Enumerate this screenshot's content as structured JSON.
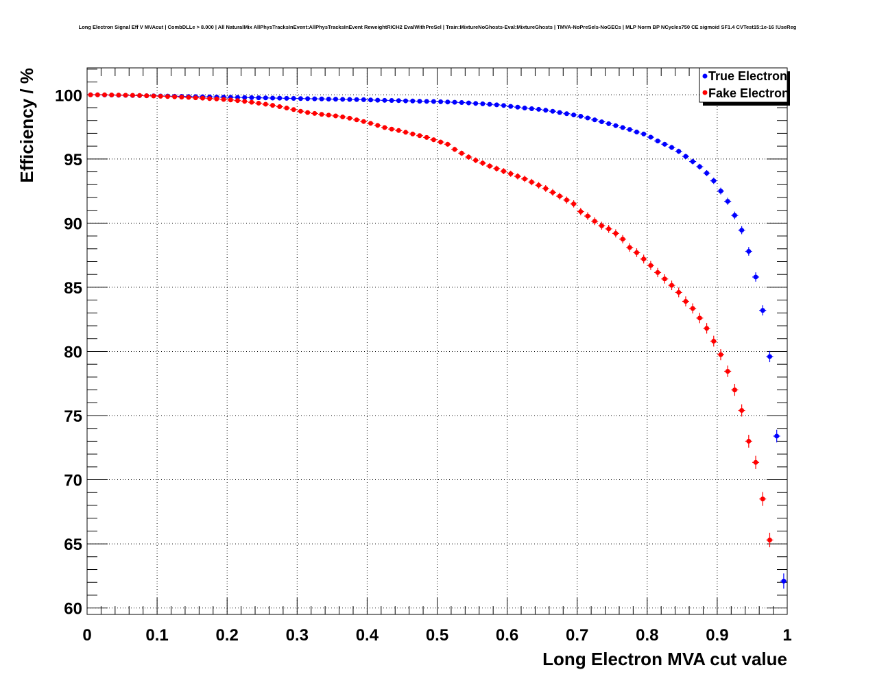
{
  "chart_data": {
    "type": "scatter",
    "title": "Long Electron Signal Eff V MVAcut | CombDLLe > 8.000 | All NaturalMix AllPhysTracksInEvent:AllPhysTracksInEvent ReweightRICH2 EvalWithPreSel | Train:MixtureNoGhosts-Eval:MixtureGhosts | TMVA-NoPreSels-NoGECs | MLP Norm BP NCycles750 CE sigmoid SF1.4 CVTest15:1e-16 !UseReg",
    "xlabel": "Long Electron MVA cut value",
    "ylabel": "Efficiency / %",
    "xlim": [
      0,
      1
    ],
    "ylim": [
      59.5,
      102.1
    ],
    "xticks": [
      "0",
      "0.1",
      "0.2",
      "0.3",
      "0.4",
      "0.5",
      "0.6",
      "0.7",
      "0.8",
      "0.9",
      "1"
    ],
    "yticks": [
      "60",
      "65",
      "70",
      "75",
      "80",
      "85",
      "90",
      "95",
      "100"
    ],
    "grid": true,
    "legend_position": "top-right",
    "x_start": 0.005,
    "x_step": 0.01,
    "series": [
      {
        "name": "True Electron",
        "color": "#0000ff",
        "values": [
          100,
          100,
          99.99,
          99.98,
          99.97,
          99.96,
          99.95,
          99.94,
          99.93,
          99.92,
          99.91,
          99.9,
          99.89,
          99.88,
          99.87,
          99.86,
          99.85,
          99.84,
          99.83,
          99.82,
          99.81,
          99.8,
          99.79,
          99.78,
          99.77,
          99.76,
          99.75,
          99.74,
          99.73,
          99.72,
          99.71,
          99.7,
          99.69,
          99.68,
          99.67,
          99.66,
          99.65,
          99.64,
          99.63,
          99.62,
          99.6,
          99.58,
          99.57,
          99.56,
          99.55,
          99.53,
          99.52,
          99.5,
          99.49,
          99.48,
          99.46,
          99.44,
          99.42,
          99.4,
          99.37,
          99.33,
          99.3,
          99.26,
          99.22,
          99.17,
          99.1,
          99.04,
          98.97,
          98.92,
          98.87,
          98.8,
          98.72,
          98.62,
          98.53,
          98.43,
          98.33,
          98.2,
          98.05,
          97.9,
          97.75,
          97.6,
          97.45,
          97.3,
          97.1,
          96.95,
          96.7,
          96.4,
          96.15,
          95.9,
          95.6,
          95.2,
          94.8,
          94.4,
          93.9,
          93.3,
          92.5,
          91.7,
          90.6,
          89.45,
          87.8,
          85.8,
          83.2,
          79.6,
          73.4,
          62.1
        ]
      },
      {
        "name": "Fake Electron",
        "color": "#ff0000",
        "values": [
          100,
          100,
          100,
          99.99,
          99.98,
          99.97,
          99.96,
          99.95,
          99.93,
          99.91,
          99.89,
          99.87,
          99.85,
          99.82,
          99.8,
          99.77,
          99.74,
          99.71,
          99.68,
          99.64,
          99.6,
          99.55,
          99.49,
          99.42,
          99.35,
          99.27,
          99.18,
          99.08,
          98.97,
          98.85,
          98.72,
          98.62,
          98.55,
          98.48,
          98.42,
          98.36,
          98.28,
          98.18,
          98.05,
          97.92,
          97.78,
          97.62,
          97.45,
          97.33,
          97.22,
          97.08,
          96.95,
          96.82,
          96.68,
          96.5,
          96.32,
          96.15,
          95.75,
          95.45,
          95.15,
          94.9,
          94.68,
          94.45,
          94.25,
          94.05,
          93.85,
          93.65,
          93.45,
          93.2,
          92.95,
          92.7,
          92.4,
          92.1,
          91.8,
          91.5,
          90.9,
          90.55,
          90.15,
          89.8,
          89.55,
          89.2,
          88.75,
          88.1,
          87.7,
          87.2,
          86.7,
          86.15,
          85.65,
          85.15,
          84.6,
          83.9,
          83.35,
          82.6,
          81.8,
          80.8,
          79.75,
          78.45,
          77.0,
          75.4,
          73.0,
          71.35,
          68.5,
          65.3,
          null,
          null
        ]
      }
    ]
  }
}
